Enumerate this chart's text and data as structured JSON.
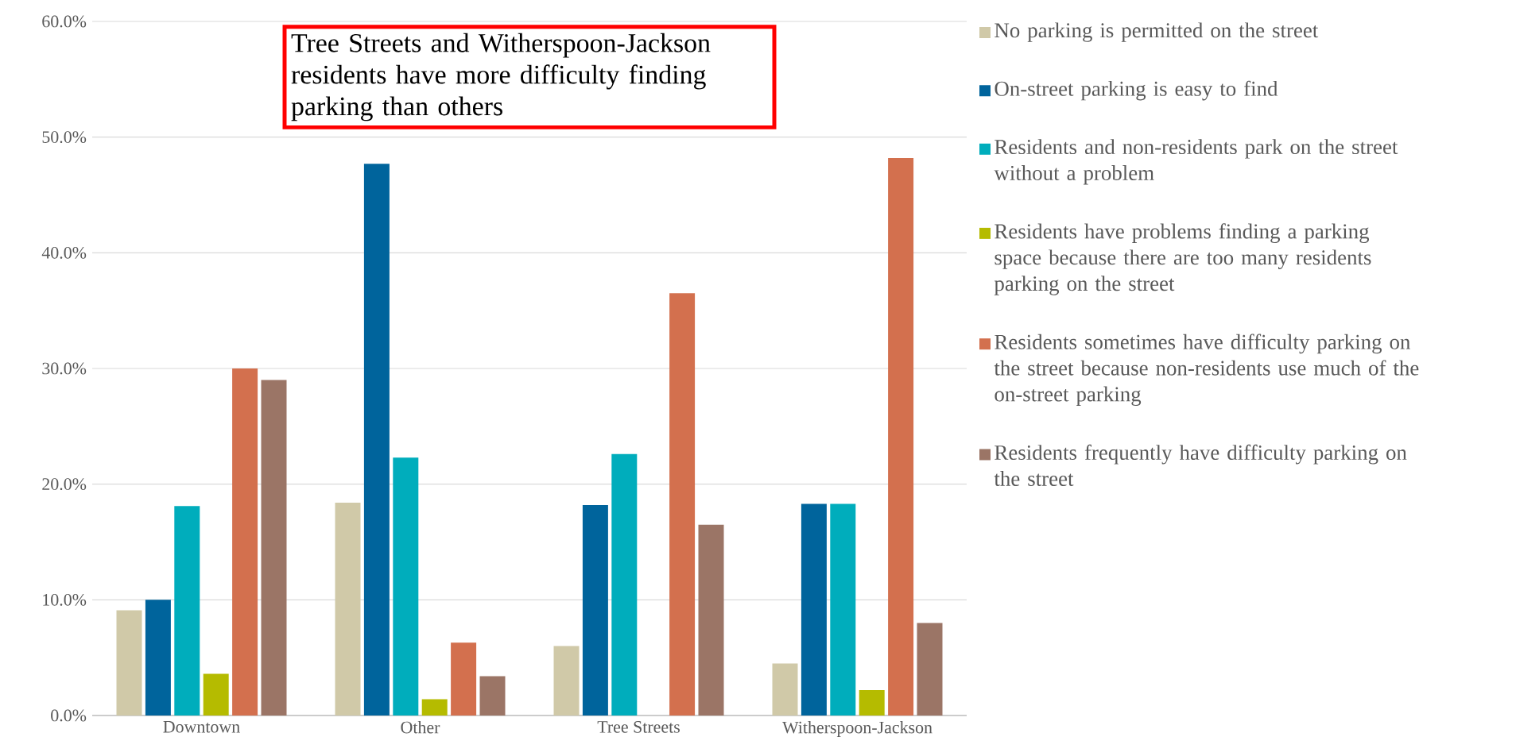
{
  "chart_data": {
    "type": "bar",
    "categories": [
      "Downtown",
      "Other",
      "Tree Streets",
      "Witherspoon-Jackson"
    ],
    "series": [
      {
        "name": "No parking is permitted on the street",
        "color": "#d0c9a8",
        "values": [
          9.1,
          18.4,
          6.0,
          4.5
        ]
      },
      {
        "name": "On-street parking is easy to find",
        "color": "#00649c",
        "values": [
          10.0,
          47.7,
          18.2,
          18.3
        ]
      },
      {
        "name": "Residents and non-residents park on the street without a problem",
        "color": "#00adbc",
        "values": [
          18.1,
          22.3,
          22.6,
          18.3
        ]
      },
      {
        "name": "Residents have problems finding a parking space because there are too many residents parking on the street",
        "color": "#b5bb00",
        "values": [
          3.6,
          1.4,
          0,
          2.2
        ]
      },
      {
        "name": "Residents sometimes have difficulty parking on the street because non-residents use much of the on-street parking",
        "color": "#d3704e",
        "values": [
          30.0,
          6.3,
          36.5,
          48.2
        ]
      },
      {
        "name": "Residents frequently have difficulty parking on the street",
        "color": "#9b7566",
        "values": [
          29.0,
          3.4,
          16.5,
          8.0
        ]
      }
    ],
    "ylim": [
      0,
      60
    ],
    "yticks": [
      {
        "value": 0,
        "label": "0.0%"
      },
      {
        "value": 10,
        "label": "10.0%"
      },
      {
        "value": 20,
        "label": "20.0%"
      },
      {
        "value": 30,
        "label": "30.0%"
      },
      {
        "value": 40,
        "label": "40.0%"
      },
      {
        "value": 50,
        "label": "50.0%"
      },
      {
        "value": 60,
        "label": "60.0%"
      }
    ],
    "grid": "y",
    "legend": "right",
    "annotations": [
      "Tree Streets and Witherspoon-Jackson residents have more difficulty finding parking than others"
    ]
  }
}
